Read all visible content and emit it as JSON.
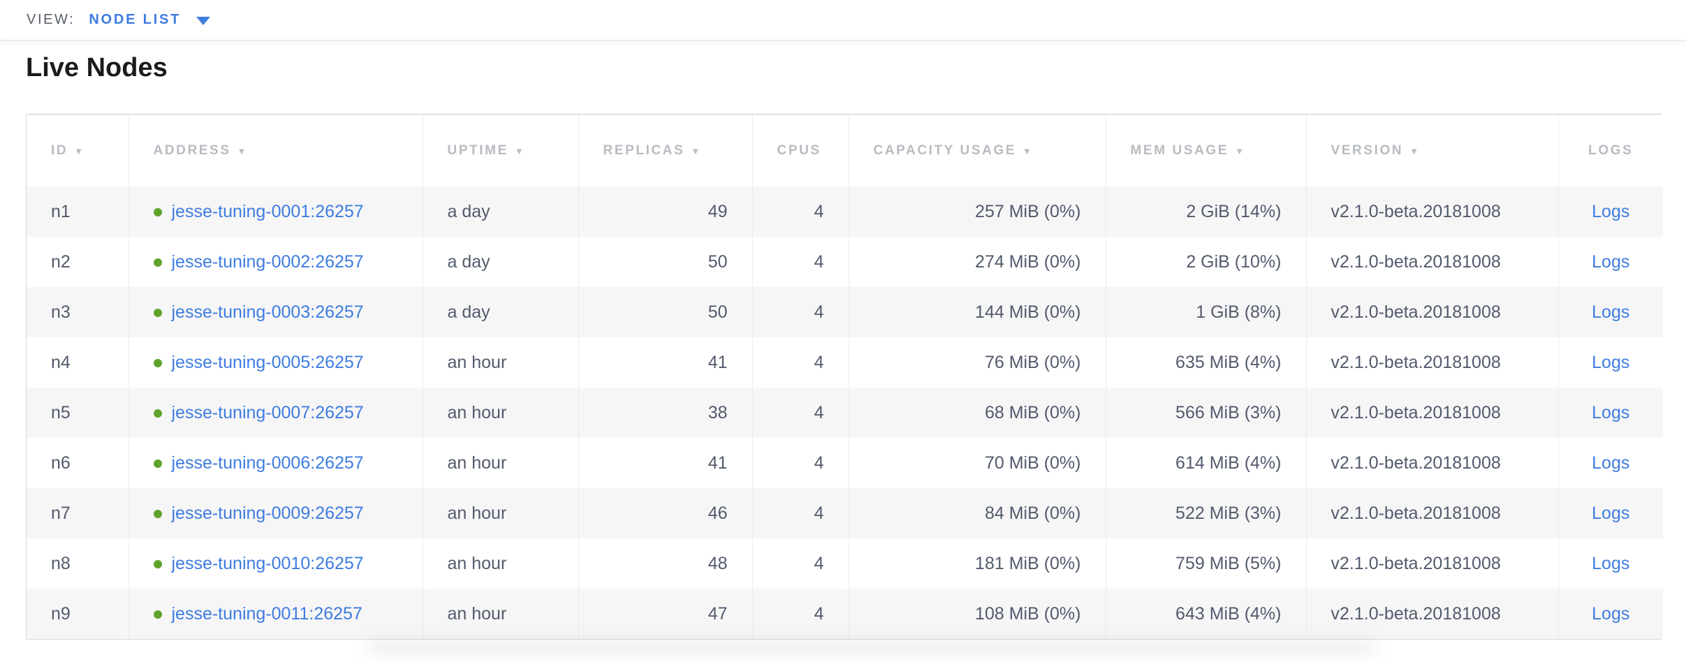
{
  "view_bar": {
    "label": "VIEW:",
    "selected": "NODE LIST"
  },
  "page": {
    "title": "Live Nodes"
  },
  "icons": {
    "sort_desc": "▼",
    "caret_down": "caret-down",
    "node_status": "green-dot"
  },
  "colors": {
    "accent_blue": "#3e7ce0",
    "link_blue": "#3e7ce0",
    "live_green": "#5fa32a",
    "header_gray": "#b8bcc1",
    "cell_text": "#525a6c",
    "stripe_bg": "#f6f6f7",
    "title_text": "#1b1b1b"
  },
  "table": {
    "columns": [
      {
        "key": "id",
        "label": "ID",
        "sortable": true,
        "header_align": "left",
        "cell_align": "left",
        "type": "text"
      },
      {
        "key": "address",
        "label": "ADDRESS",
        "sortable": true,
        "header_align": "left",
        "cell_align": "left",
        "type": "node-link"
      },
      {
        "key": "uptime",
        "label": "UPTIME",
        "sortable": true,
        "header_align": "left",
        "cell_align": "left",
        "type": "text"
      },
      {
        "key": "replicas",
        "label": "REPLICAS",
        "sortable": true,
        "header_align": "left",
        "cell_align": "right",
        "type": "text"
      },
      {
        "key": "cpus",
        "label": "CPUS",
        "sortable": false,
        "header_align": "left",
        "cell_align": "right",
        "type": "text"
      },
      {
        "key": "capacity_usage",
        "label": "CAPACITY USAGE",
        "sortable": true,
        "header_align": "left",
        "cell_align": "right",
        "type": "text"
      },
      {
        "key": "mem_usage",
        "label": "MEM USAGE",
        "sortable": true,
        "header_align": "left",
        "cell_align": "right",
        "type": "text"
      },
      {
        "key": "version",
        "label": "VERSION",
        "sortable": true,
        "header_align": "left",
        "cell_align": "left",
        "type": "text"
      },
      {
        "key": "logs",
        "label": "LOGS",
        "sortable": false,
        "header_align": "center",
        "cell_align": "center",
        "type": "link"
      }
    ],
    "rows": [
      {
        "id": "n1",
        "address": "jesse-tuning-0001:26257",
        "uptime": "a day",
        "replicas": "49",
        "cpus": "4",
        "capacity_usage": "257 MiB (0%)",
        "mem_usage": "2 GiB (14%)",
        "version": "v2.1.0-beta.20181008",
        "logs": "Logs"
      },
      {
        "id": "n2",
        "address": "jesse-tuning-0002:26257",
        "uptime": "a day",
        "replicas": "50",
        "cpus": "4",
        "capacity_usage": "274 MiB (0%)",
        "mem_usage": "2 GiB (10%)",
        "version": "v2.1.0-beta.20181008",
        "logs": "Logs"
      },
      {
        "id": "n3",
        "address": "jesse-tuning-0003:26257",
        "uptime": "a day",
        "replicas": "50",
        "cpus": "4",
        "capacity_usage": "144 MiB (0%)",
        "mem_usage": "1 GiB (8%)",
        "version": "v2.1.0-beta.20181008",
        "logs": "Logs"
      },
      {
        "id": "n4",
        "address": "jesse-tuning-0005:26257",
        "uptime": "an hour",
        "replicas": "41",
        "cpus": "4",
        "capacity_usage": "76 MiB (0%)",
        "mem_usage": "635 MiB (4%)",
        "version": "v2.1.0-beta.20181008",
        "logs": "Logs"
      },
      {
        "id": "n5",
        "address": "jesse-tuning-0007:26257",
        "uptime": "an hour",
        "replicas": "38",
        "cpus": "4",
        "capacity_usage": "68 MiB (0%)",
        "mem_usage": "566 MiB (3%)",
        "version": "v2.1.0-beta.20181008",
        "logs": "Logs"
      },
      {
        "id": "n6",
        "address": "jesse-tuning-0006:26257",
        "uptime": "an hour",
        "replicas": "41",
        "cpus": "4",
        "capacity_usage": "70 MiB (0%)",
        "mem_usage": "614 MiB (4%)",
        "version": "v2.1.0-beta.20181008",
        "logs": "Logs"
      },
      {
        "id": "n7",
        "address": "jesse-tuning-0009:26257",
        "uptime": "an hour",
        "replicas": "46",
        "cpus": "4",
        "capacity_usage": "84 MiB (0%)",
        "mem_usage": "522 MiB (3%)",
        "version": "v2.1.0-beta.20181008",
        "logs": "Logs"
      },
      {
        "id": "n8",
        "address": "jesse-tuning-0010:26257",
        "uptime": "an hour",
        "replicas": "48",
        "cpus": "4",
        "capacity_usage": "181 MiB (0%)",
        "mem_usage": "759 MiB (5%)",
        "version": "v2.1.0-beta.20181008",
        "logs": "Logs"
      },
      {
        "id": "n9",
        "address": "jesse-tuning-0011:26257",
        "uptime": "an hour",
        "replicas": "47",
        "cpus": "4",
        "capacity_usage": "108 MiB (0%)",
        "mem_usage": "643 MiB (4%)",
        "version": "v2.1.0-beta.20181008",
        "logs": "Logs"
      }
    ]
  }
}
